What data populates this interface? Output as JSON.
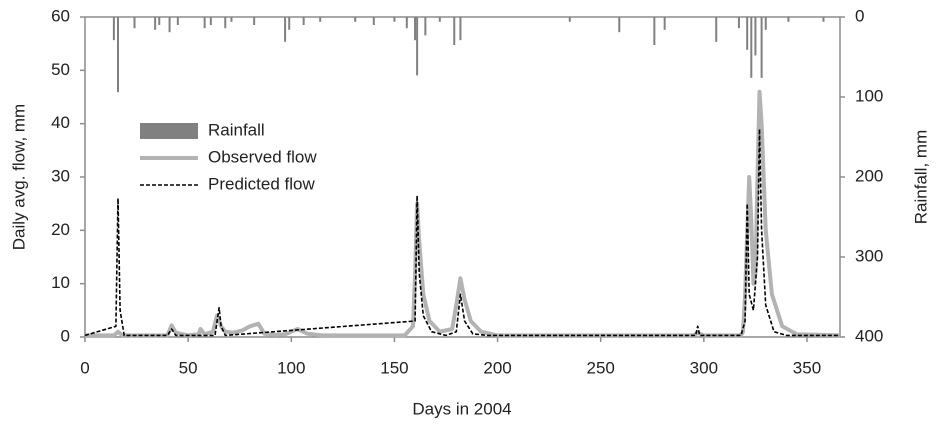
{
  "chart_data": {
    "type": "combo",
    "x_label": "Days in 2004",
    "y_label": "Daily avg. flow, mm",
    "y2_label": "Rainfall, mm",
    "xlim": [
      0,
      366
    ],
    "xticks": [
      0,
      50,
      100,
      150,
      200,
      250,
      300,
      350
    ],
    "ylim": [
      0,
      60
    ],
    "yticks": [
      0,
      10,
      20,
      30,
      40,
      50,
      60
    ],
    "y2lim": [
      0,
      400
    ],
    "y2ticks": [
      0,
      100,
      200,
      300,
      400
    ],
    "y2_inverted": true,
    "grid": false,
    "legend": "center left",
    "series": [
      {
        "name": "Rainfall",
        "type": "bar",
        "axis": "y2",
        "color": "#808080",
        "x": [
          14,
          16,
          24,
          34,
          36,
          41,
          45,
          58,
          61,
          68,
          71,
          82,
          97,
          99,
          106,
          114,
          131,
          140,
          150,
          156,
          160,
          161,
          165,
          172,
          179,
          182,
          235,
          259,
          276,
          281,
          306,
          317,
          321,
          323,
          325,
          328,
          330,
          341,
          358
        ],
        "values": [
          29,
          94,
          14,
          16,
          10,
          19,
          10,
          14,
          10,
          14,
          6,
          10,
          31,
          16,
          10,
          6,
          6,
          10,
          6,
          14,
          29,
          73,
          23,
          6,
          35,
          29,
          6,
          19,
          35,
          16,
          31,
          14,
          41,
          76,
          48,
          76,
          16,
          6,
          6
        ]
      },
      {
        "name": "Observed flow",
        "type": "line",
        "color": "#b3b3b3",
        "x": [
          0,
          14,
          16,
          18,
          40,
          42,
          44,
          50,
          55,
          56,
          58,
          62,
          64,
          66,
          68,
          72,
          76,
          80,
          84,
          87,
          92,
          97,
          100,
          103,
          108,
          115,
          155,
          159,
          160,
          161,
          162,
          164,
          167,
          172,
          178,
          180,
          182,
          184,
          187,
          192,
          200,
          295,
          297,
          300,
          318,
          319,
          320,
          322,
          323,
          324,
          325,
          326,
          327,
          328,
          330,
          333,
          338,
          345,
          366
        ],
        "values": [
          0.3,
          0.3,
          1,
          0.3,
          0.3,
          2.2,
          0.8,
          0.3,
          0.5,
          1.5,
          0.5,
          1,
          4,
          2,
          1,
          0.8,
          1.2,
          2,
          2.5,
          0.6,
          0.4,
          0.5,
          1,
          1.5,
          0.6,
          0.3,
          0.3,
          2,
          12,
          25,
          18,
          8,
          3,
          1,
          1.5,
          6,
          11,
          7,
          3,
          1,
          0.3,
          0.3,
          0.8,
          0.3,
          0.3,
          1,
          8,
          30,
          22,
          10,
          12,
          30,
          46,
          40,
          20,
          8,
          2,
          0.5,
          0.3
        ]
      },
      {
        "name": "Predicted flow",
        "type": "line",
        "dashed": true,
        "color": "#000000",
        "x": [
          0,
          15,
          16,
          17,
          19,
          40,
          42,
          44,
          63,
          65,
          66,
          68,
          160,
          161,
          162,
          164,
          168,
          175,
          180,
          182,
          184,
          188,
          195,
          296,
          297,
          298,
          318,
          320,
          321,
          322,
          324,
          326,
          327,
          328,
          330,
          334,
          340,
          366
        ],
        "values": [
          0.3,
          2,
          26,
          5,
          0.3,
          0.3,
          1.5,
          0.3,
          0.3,
          5.5,
          2,
          0.3,
          3,
          26.5,
          12,
          4,
          1,
          0.3,
          1,
          8,
          3,
          0.6,
          0.3,
          0.3,
          2,
          0.3,
          0.3,
          3,
          25,
          8,
          5,
          15,
          39,
          20,
          6,
          1,
          0.3,
          0.3
        ]
      }
    ]
  }
}
